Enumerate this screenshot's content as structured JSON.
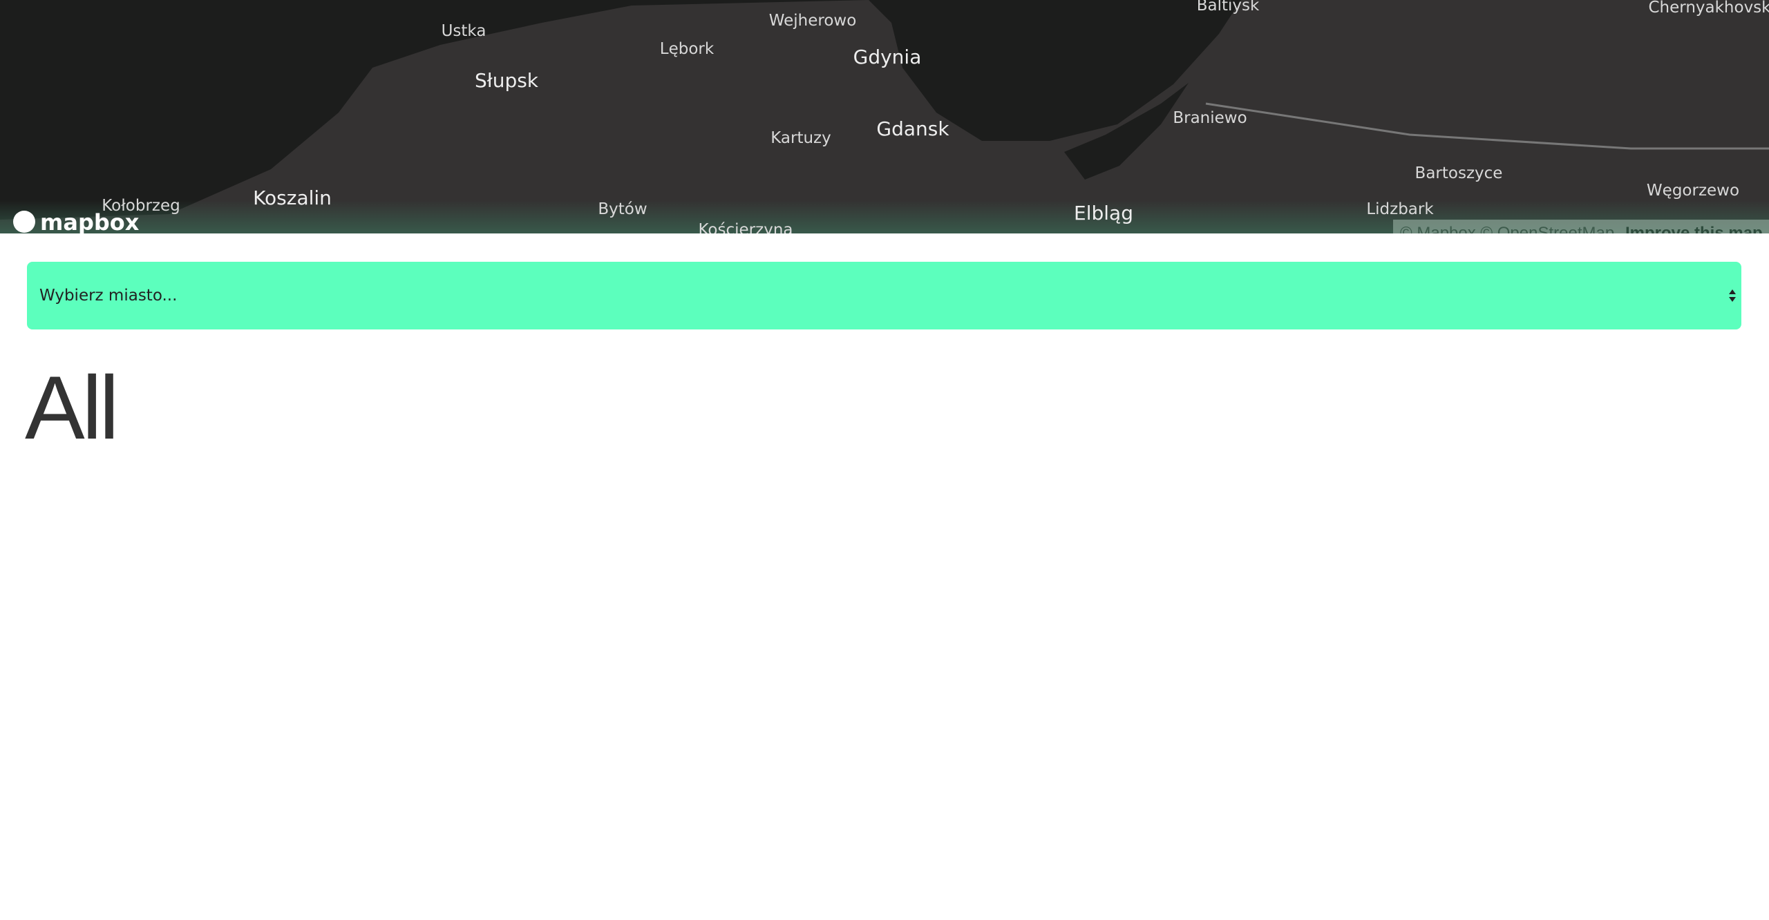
{
  "map": {
    "cities": [
      "Ustka",
      "Wejherowo",
      "Baltiysk",
      "Chernyakhovsk",
      "Lębork",
      "Gdynia",
      "Słupsk",
      "Braniewo",
      "Kartuzy",
      "Gdansk",
      "Bartoszyce",
      "Węgorzewo",
      "Kołobrzeg",
      "Koszalin",
      "Bytów",
      "Lidzbark",
      "Elbląg",
      "Kościerzyna"
    ],
    "logo": "mapbox",
    "attribution": "© Mapbox © OpenStreetMap",
    "improve": "Improve this map"
  },
  "select": {
    "placeholder": "Wybierz miasto..."
  },
  "heading": "All"
}
